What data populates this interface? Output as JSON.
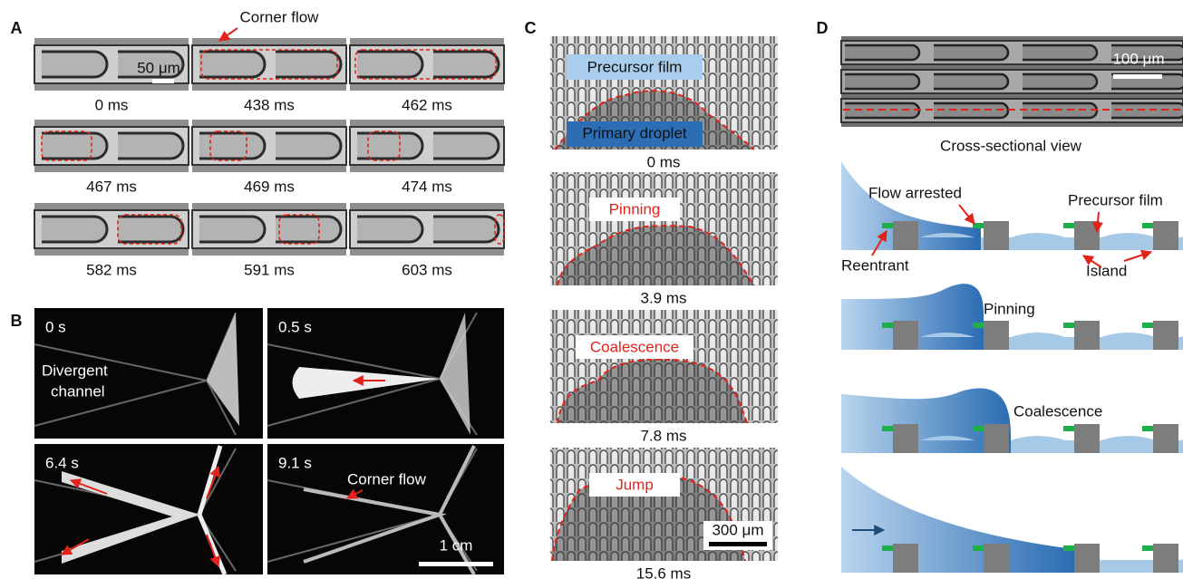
{
  "panels": {
    "A": {
      "label": "A",
      "callout": "Corner flow",
      "scale_bar": "50 μm",
      "times": [
        "0 ms",
        "438 ms",
        "462 ms",
        "467 ms",
        "469 ms",
        "474 ms",
        "582 ms",
        "591 ms",
        "603 ms"
      ]
    },
    "B": {
      "label": "B",
      "times": [
        "0 s",
        "0.5 s",
        "6.4 s",
        "9.1 s"
      ],
      "channel_label": [
        "Divergent",
        "channel"
      ],
      "callout": "Corner flow",
      "scale_bar": "1 cm"
    },
    "C": {
      "label": "C",
      "frames": [
        {
          "time": "0 ms",
          "labels": [
            "Precursor film",
            "Primary droplet"
          ]
        },
        {
          "time": "3.9 ms",
          "labels": [
            "Pinning"
          ]
        },
        {
          "time": "7.8 ms",
          "labels": [
            "Coalescence"
          ]
        },
        {
          "time": "15.6 ms",
          "labels": [
            "Jump"
          ]
        }
      ],
      "scale_bar": "300 μm"
    },
    "D": {
      "label": "D",
      "scale_bar": "100 μm",
      "caption": "Cross-sectional view",
      "annotations": [
        "Flow arrested",
        "Precursor film",
        "Reentrant",
        "Island",
        "Pinning",
        "Coalescence"
      ]
    }
  }
}
